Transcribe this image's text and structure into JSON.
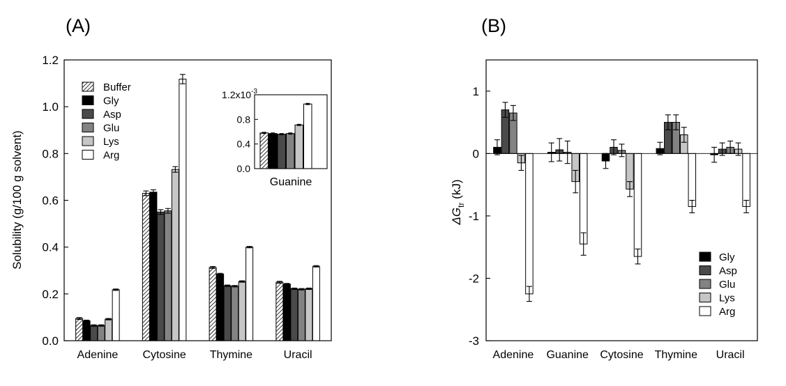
{
  "chart_data": [
    {
      "type": "bar",
      "panel_label": "(A)",
      "ylabel": "Solubility (g/100 g solvent)",
      "ylim": [
        0,
        1.2
      ],
      "yticks": [
        "0.0",
        "0.2",
        "0.4",
        "0.6",
        "0.8",
        "1.0",
        "1.2"
      ],
      "categories": [
        "Adenine",
        "Cytosine",
        "Thymine",
        "Uracil"
      ],
      "legend_position": "top-left",
      "series": [
        {
          "name": "Buffer",
          "values": [
            0.095,
            0.63,
            0.313,
            0.25
          ],
          "errors": [
            0.004,
            0.01,
            0.004,
            0.004
          ]
        },
        {
          "name": "Gly",
          "values": [
            0.085,
            0.635,
            0.285,
            0.242
          ],
          "errors": [
            0.003,
            0.01,
            0.003,
            0.003
          ]
        },
        {
          "name": "Asp",
          "values": [
            0.065,
            0.55,
            0.235,
            0.222
          ],
          "errors": [
            0.003,
            0.01,
            0.003,
            0.003
          ]
        },
        {
          "name": "Glu",
          "values": [
            0.065,
            0.555,
            0.233,
            0.22
          ],
          "errors": [
            0.003,
            0.01,
            0.003,
            0.003
          ]
        },
        {
          "name": "Lys",
          "values": [
            0.092,
            0.732,
            0.253,
            0.222
          ],
          "errors": [
            0.003,
            0.012,
            0.003,
            0.003
          ]
        },
        {
          "name": "Arg",
          "values": [
            0.218,
            1.118,
            0.4,
            0.318
          ],
          "errors": [
            0.003,
            0.02,
            0.003,
            0.003
          ]
        }
      ],
      "inset": {
        "category": "Guanine",
        "ylim": [
          0,
          1.2
        ],
        "ytick_values": [
          0.0,
          0.4,
          0.8,
          1.2
        ],
        "ytick_labels": [
          "0.0",
          "0.4",
          "0.8",
          "1.2x10"
        ],
        "ytick_exponent": "-3",
        "values": [
          0.58,
          0.57,
          0.56,
          0.57,
          0.71,
          1.05
        ],
        "errors": [
          0.01,
          0.01,
          0.01,
          0.01,
          0.01,
          0.01
        ]
      }
    },
    {
      "type": "bar",
      "panel_label": "(B)",
      "ylabel": "ΔG",
      "ylabel_subscript": "tr",
      "ylabel_unit": " (kJ)",
      "ylim": [
        -3,
        1.5
      ],
      "ytick_values": [
        -3,
        -2,
        -1,
        0,
        1
      ],
      "ytick_labels": [
        "-3",
        "-2",
        "-1",
        "0",
        "1"
      ],
      "categories": [
        "Adenine",
        "Guanine",
        "Cytosine",
        "Thymine",
        "Uracil"
      ],
      "legend_position": "bottom-right",
      "series": [
        {
          "name": "Gly",
          "values": [
            0.1,
            0.02,
            -0.12,
            0.08,
            -0.02
          ],
          "errors": [
            0.12,
            0.15,
            0.12,
            0.1,
            0.12
          ]
        },
        {
          "name": "Asp",
          "values": [
            0.7,
            0.06,
            0.1,
            0.5,
            0.07
          ],
          "errors": [
            0.12,
            0.18,
            0.12,
            0.12,
            0.1
          ]
        },
        {
          "name": "Glu",
          "values": [
            0.65,
            0.02,
            0.05,
            0.5,
            0.1
          ],
          "errors": [
            0.12,
            0.18,
            0.1,
            0.12,
            0.1
          ]
        },
        {
          "name": "Lys",
          "values": [
            -0.15,
            -0.45,
            -0.57,
            0.3,
            0.07
          ],
          "errors": [
            0.12,
            0.18,
            0.12,
            0.12,
            0.1
          ]
        },
        {
          "name": "Arg",
          "values": [
            -2.25,
            -1.45,
            -1.65,
            -0.85,
            -0.85
          ],
          "errors": [
            0.12,
            0.18,
            0.12,
            0.1,
            0.1
          ]
        }
      ]
    }
  ],
  "styles": {
    "Buffer": {
      "fill": "#ffffff",
      "pattern": "hatch"
    },
    "Gly": {
      "fill": "#000000"
    },
    "Asp": {
      "fill": "#4a4a4a"
    },
    "Glu": {
      "fill": "#838383"
    },
    "Lys": {
      "fill": "#c6c6c6"
    },
    "Arg": {
      "fill": "#ffffff"
    }
  }
}
